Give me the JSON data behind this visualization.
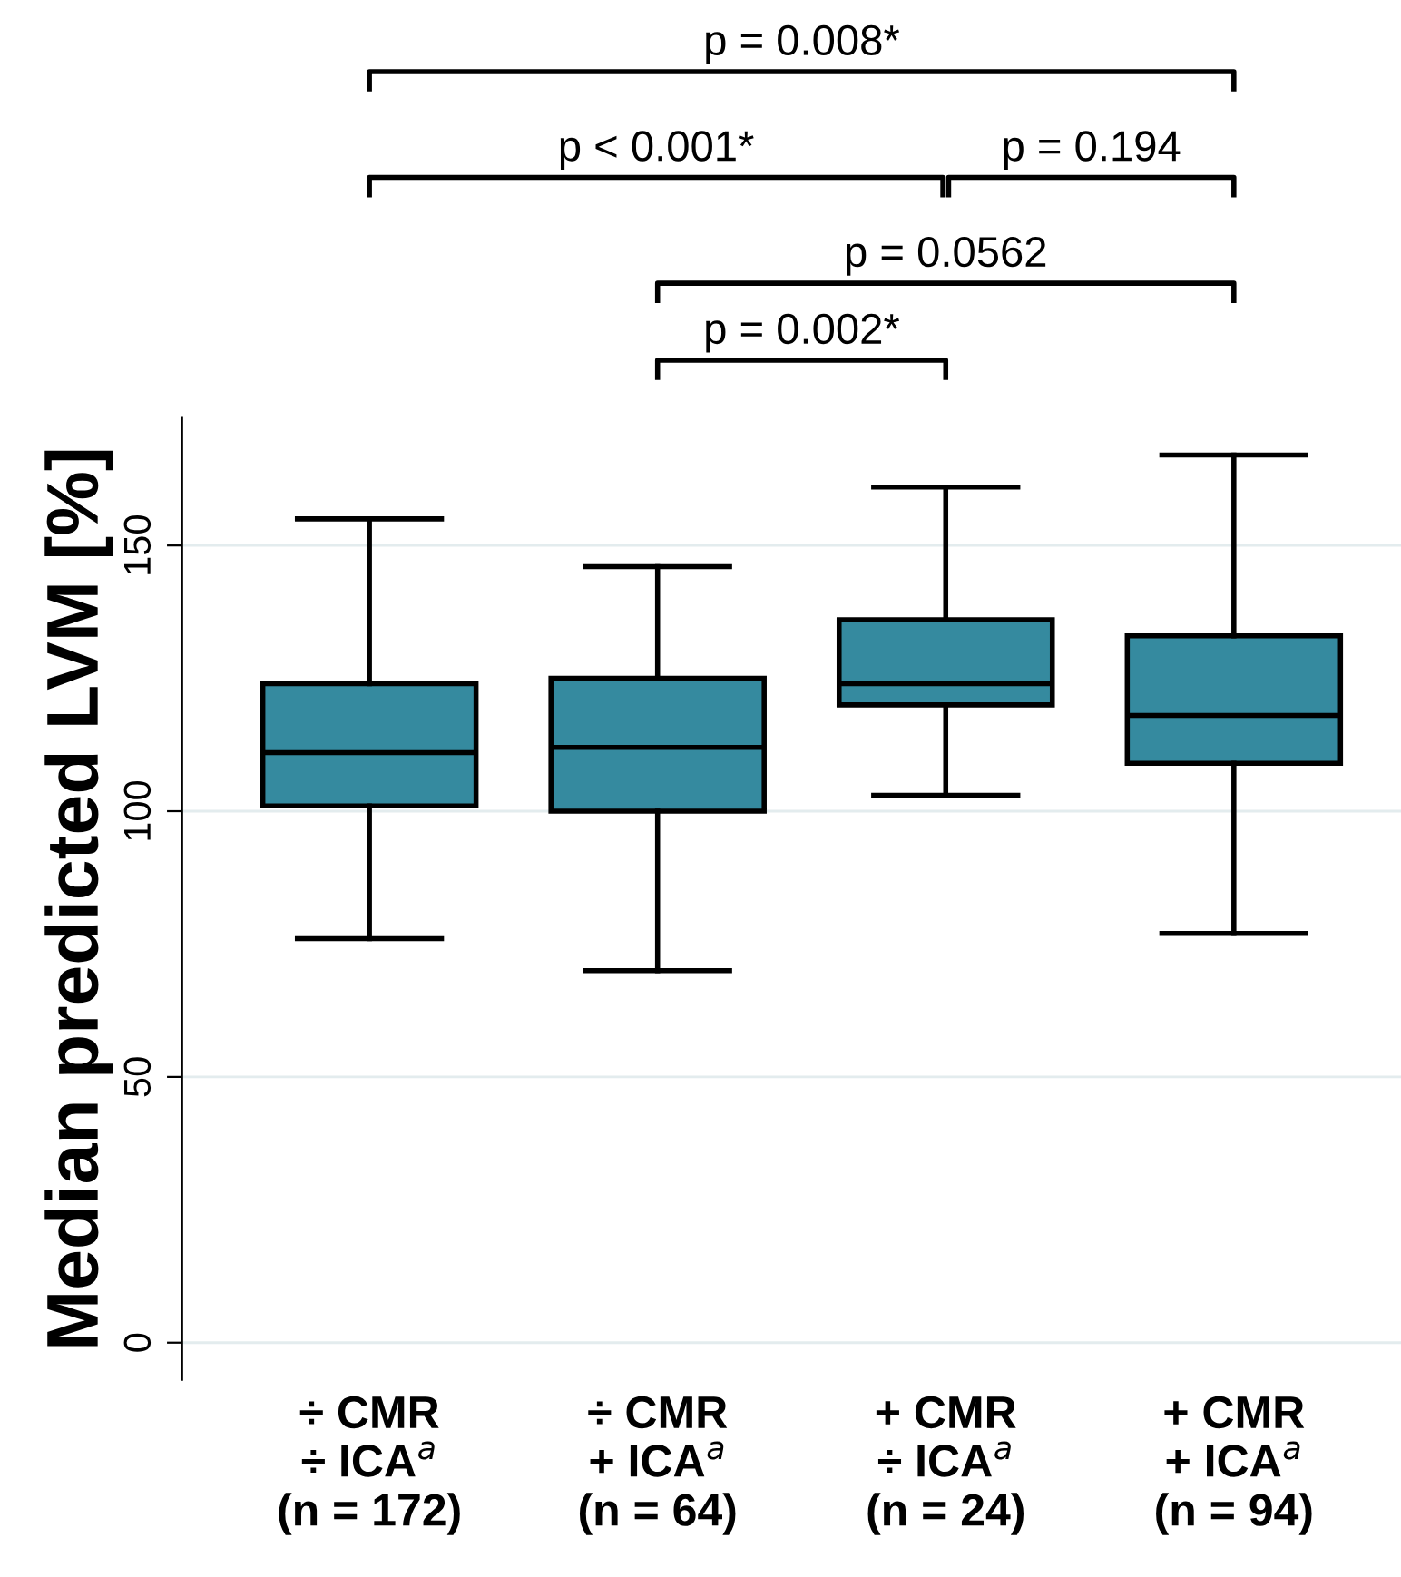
{
  "chart_data": {
    "type": "box",
    "ylabel": "Median predicted LVM [%]",
    "categories": [
      "÷ CMR\n÷ ICA$^{a}$\n(n = 172)",
      "÷ CMR\n+ ICA$^{a}$\n(n = 64)",
      "+ CMR\n÷ ICA$^{a}$\n(n = 24)",
      "+ CMR\n+ ICA$^{a}$\n(n = 94)"
    ],
    "series": [
      {
        "color": "#358a9f",
        "boxes": [
          {
            "low": 76,
            "q1": 101,
            "median": 111,
            "q3": 124,
            "high": 155
          },
          {
            "low": 70,
            "q1": 100,
            "median": 112,
            "q3": 125,
            "high": 146
          },
          {
            "low": 103,
            "q1": 120,
            "median": 124,
            "q3": 136,
            "high": 161
          },
          {
            "low": 77,
            "q1": 109,
            "median": 118,
            "q3": 133,
            "high": 167
          }
        ]
      }
    ],
    "ylim": [
      -7,
      174
    ],
    "yticks": [
      0,
      50,
      100,
      150
    ],
    "grid": "y",
    "legend": false,
    "annotations": [
      "p = 0.008*",
      "p < 0.001*",
      "p = 0.194",
      "p = 0.0562",
      "p = 0.002*"
    ]
  }
}
